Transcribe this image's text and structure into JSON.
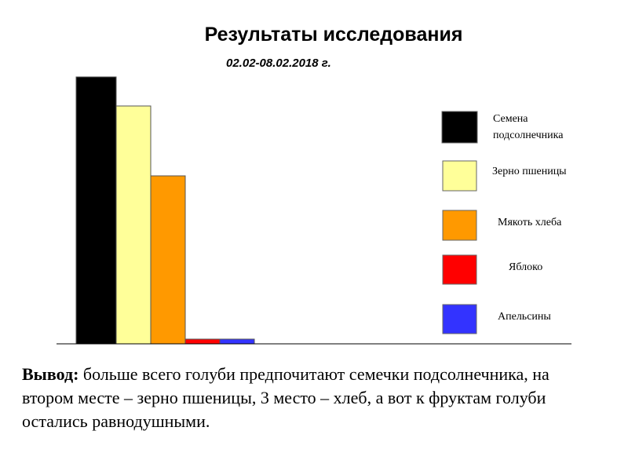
{
  "chart_data": {
    "type": "bar",
    "title": "Результаты исследования",
    "subtitle": "02.02-08.02.2018 г.",
    "categories": [
      "Семена подсолнечника",
      "Зерно пшеницы",
      "Мякоть хлеба",
      "Яблоко",
      "Апельсины"
    ],
    "values": [
      340,
      303,
      214,
      6,
      6
    ],
    "colors": [
      "#000000",
      "#ffff99",
      "#ff9900",
      "#ff0000",
      "#3333ff"
    ],
    "ylim": [
      0,
      340
    ],
    "legend": {
      "position": "right",
      "entries": [
        {
          "label": "Семена подсолнечника",
          "color": "#000000"
        },
        {
          "label": "Зерно пшеницы",
          "color": "#ffff99"
        },
        {
          "label": "Мякоть хлеба",
          "color": "#ff9900"
        },
        {
          "label": "Яблоко",
          "color": "#ff0000"
        },
        {
          "label": "Апельсины",
          "color": "#3333ff"
        }
      ]
    },
    "grid": false,
    "xlabel": "",
    "ylabel": ""
  },
  "conclusion": {
    "lead": "Вывод:",
    "text": " больше всего голуби предпочитают семечки подсолнечника, на втором месте – зерно пшеницы,  3 место – хлеб, а вот к фруктам голуби остались равнодушными."
  }
}
